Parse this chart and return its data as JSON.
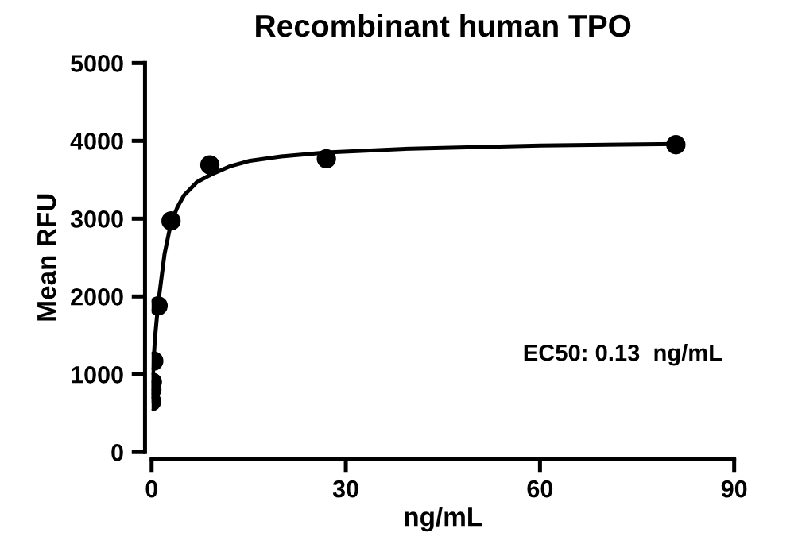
{
  "chart_data": {
    "type": "scatter",
    "title": "Recombinant human TPO",
    "xlabel": "ng/mL",
    "ylabel": "Mean RFU",
    "annotations": [
      "EC50: 0.13  ng/mL"
    ],
    "xlim": [
      0,
      90
    ],
    "xticks": [
      0,
      30,
      60,
      90
    ],
    "ylim": [
      0,
      5000
    ],
    "yticks": [
      0,
      1000,
      2000,
      3000,
      4000,
      5000
    ],
    "grid": false,
    "marker": "circle",
    "series": [
      {
        "color": "#000000",
        "x": [
          0.012,
          0.037,
          0.11,
          0.33,
          1,
          3,
          9,
          27,
          81
        ],
        "values": [
          650,
          800,
          900,
          1170,
          1880,
          2970,
          3690,
          3770,
          3950
        ]
      },
      {
        "type": "line",
        "color": "#000000",
        "marker": "none",
        "line_style": "solid",
        "x": [
          0,
          0.2,
          0.5,
          1,
          2,
          3,
          4,
          5,
          7,
          9,
          12,
          15,
          20,
          27,
          40,
          60,
          81
        ],
        "values": [
          650,
          1000,
          1450,
          1900,
          2550,
          2950,
          3150,
          3300,
          3470,
          3560,
          3670,
          3740,
          3800,
          3850,
          3900,
          3940,
          3960
        ]
      }
    ]
  }
}
